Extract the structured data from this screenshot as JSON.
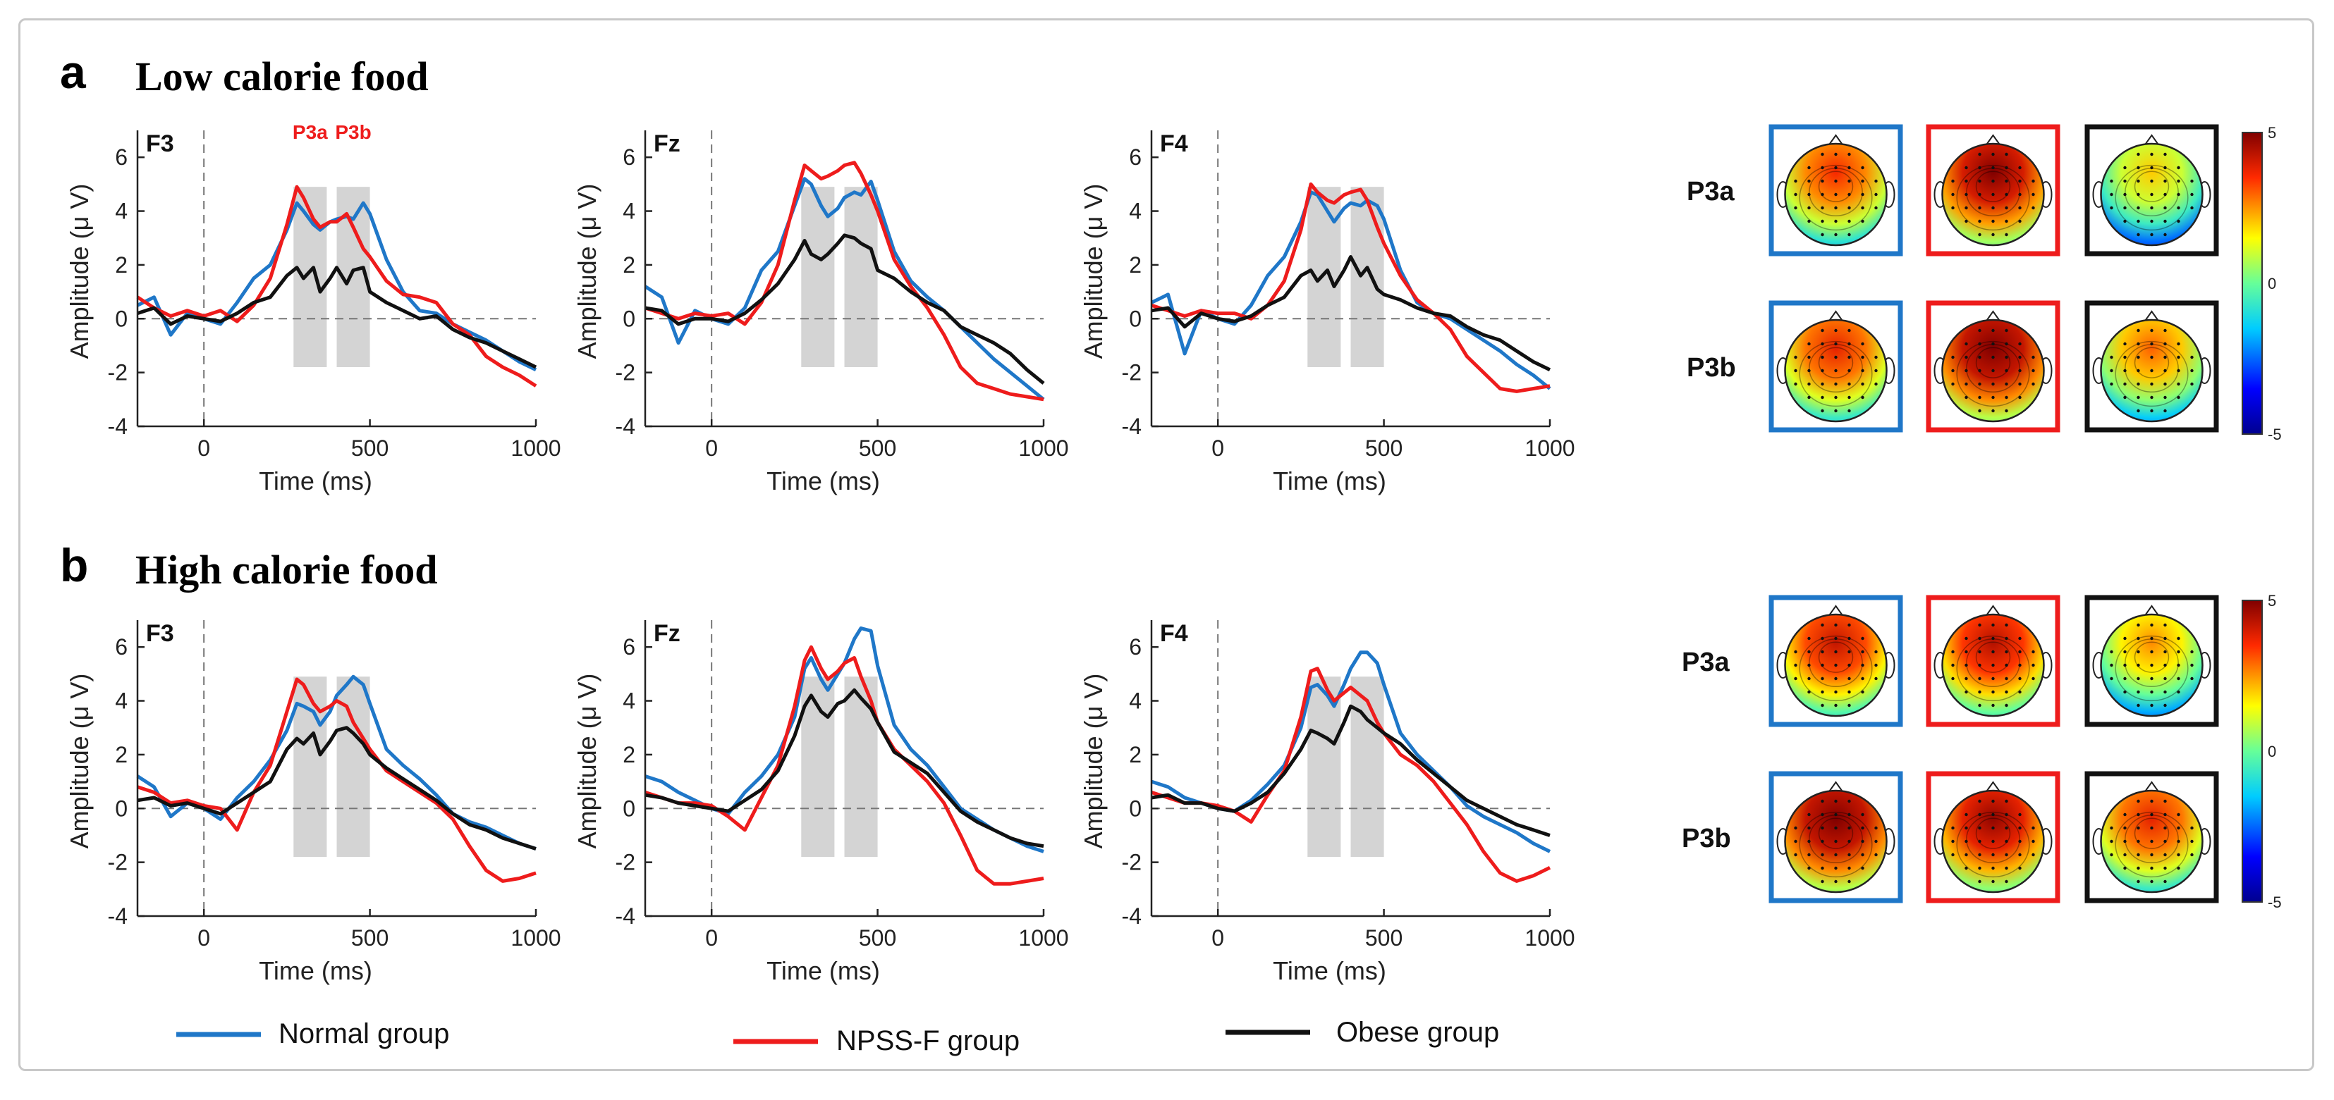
{
  "figure": {
    "panels": [
      {
        "letter": "a",
        "title": "Low calorie food"
      },
      {
        "letter": "b",
        "title": "High calorie food"
      }
    ],
    "x_label": "Time (ms)",
    "y_label": "Amplitude (μ V)",
    "x_ticks": [
      "0",
      "500",
      "1000"
    ],
    "y_ticks": [
      "-4",
      "-2",
      "0",
      "2",
      "4",
      "6"
    ],
    "window_labels": [
      "P3a",
      "P3b"
    ],
    "colorbar_ticks": [
      "5",
      "0",
      "-5"
    ]
  },
  "legend": [
    {
      "label": "Normal group",
      "color": "#1f77c8"
    },
    {
      "label": "NPSS-F group",
      "color": "#ee1c1c"
    },
    {
      "label": "Obese group",
      "color": "#111111"
    }
  ],
  "colors": {
    "normal": "#1f77c8",
    "npss": "#ee1c1c",
    "obese": "#111111",
    "window": "#d4d4d4"
  },
  "chart_data": [
    {
      "type": "line",
      "panel": "a",
      "channel": "F3",
      "xlim": [
        -200,
        1000
      ],
      "ylim": [
        -4,
        7
      ],
      "windows": [
        [
          270,
          370
        ],
        [
          400,
          500
        ]
      ],
      "x": [
        -200,
        -150,
        -100,
        -50,
        0,
        50,
        100,
        150,
        200,
        250,
        280,
        300,
        330,
        350,
        380,
        400,
        430,
        450,
        480,
        500,
        550,
        600,
        650,
        700,
        750,
        800,
        850,
        900,
        950,
        1000
      ],
      "series": [
        {
          "name": "Normal group",
          "values": [
            0.5,
            0.8,
            -0.6,
            0.2,
            0,
            -0.2,
            0.6,
            1.5,
            2.0,
            3.3,
            4.3,
            4.0,
            3.5,
            3.3,
            3.6,
            3.7,
            3.8,
            3.7,
            4.3,
            3.9,
            2.2,
            1.0,
            0.3,
            0.2,
            -0.2,
            -0.5,
            -0.8,
            -1.2,
            -1.6,
            -1.9
          ]
        },
        {
          "name": "NPSS-F group",
          "values": [
            0.8,
            0.4,
            0.1,
            0.3,
            0.1,
            0.3,
            -0.1,
            0.5,
            1.5,
            3.5,
            4.9,
            4.5,
            3.7,
            3.4,
            3.6,
            3.6,
            3.9,
            3.4,
            2.6,
            2.3,
            1.4,
            0.9,
            0.8,
            0.6,
            -0.2,
            -0.6,
            -1.4,
            -1.8,
            -2.1,
            -2.5
          ]
        },
        {
          "name": "Obese group",
          "values": [
            0.2,
            0.4,
            -0.2,
            0.1,
            0,
            -0.1,
            0.2,
            0.6,
            0.8,
            1.6,
            1.9,
            1.5,
            1.9,
            1.0,
            1.5,
            1.9,
            1.3,
            1.8,
            1.9,
            1.0,
            0.6,
            0.3,
            0.0,
            0.1,
            -0.4,
            -0.7,
            -0.9,
            -1.2,
            -1.5,
            -1.8
          ]
        }
      ]
    },
    {
      "type": "line",
      "panel": "a",
      "channel": "Fz",
      "xlim": [
        -200,
        1000
      ],
      "ylim": [
        -4,
        7
      ],
      "windows": [
        [
          270,
          370
        ],
        [
          400,
          500
        ]
      ],
      "x": [
        -200,
        -150,
        -100,
        -50,
        0,
        50,
        100,
        150,
        200,
        250,
        280,
        300,
        330,
        350,
        380,
        400,
        430,
        450,
        480,
        500,
        550,
        600,
        650,
        700,
        750,
        800,
        850,
        900,
        950,
        1000
      ],
      "series": [
        {
          "name": "Normal group",
          "values": [
            1.2,
            0.8,
            -0.9,
            0.3,
            0,
            -0.2,
            0.4,
            1.8,
            2.5,
            4.2,
            5.2,
            5.0,
            4.2,
            3.8,
            4.1,
            4.5,
            4.7,
            4.6,
            5.1,
            4.4,
            2.5,
            1.4,
            0.8,
            0.3,
            -0.3,
            -0.9,
            -1.5,
            -2.0,
            -2.5,
            -3.0
          ]
        },
        {
          "name": "NPSS-F group",
          "values": [
            0.4,
            0.2,
            0.0,
            0.2,
            0.1,
            0.2,
            -0.2,
            0.6,
            2.0,
            4.4,
            5.7,
            5.5,
            5.2,
            5.3,
            5.5,
            5.7,
            5.8,
            5.4,
            4.6,
            4.0,
            2.2,
            1.2,
            0.4,
            -0.6,
            -1.8,
            -2.4,
            -2.6,
            -2.8,
            -2.9,
            -3.0
          ]
        },
        {
          "name": "Obese group",
          "values": [
            0.4,
            0.3,
            -0.2,
            0.0,
            0,
            -0.1,
            0.2,
            0.7,
            1.3,
            2.2,
            2.9,
            2.4,
            2.2,
            2.4,
            2.8,
            3.1,
            3.0,
            2.8,
            2.6,
            1.8,
            1.5,
            1.0,
            0.6,
            0.3,
            -0.3,
            -0.6,
            -0.9,
            -1.3,
            -1.9,
            -2.4
          ]
        }
      ]
    },
    {
      "type": "line",
      "panel": "a",
      "channel": "F4",
      "xlim": [
        -200,
        1000
      ],
      "ylim": [
        -4,
        7
      ],
      "windows": [
        [
          270,
          370
        ],
        [
          400,
          500
        ]
      ],
      "x": [
        -200,
        -150,
        -100,
        -50,
        0,
        50,
        100,
        150,
        200,
        250,
        280,
        300,
        330,
        350,
        380,
        400,
        430,
        450,
        480,
        500,
        550,
        600,
        650,
        700,
        750,
        800,
        850,
        900,
        950,
        1000
      ],
      "series": [
        {
          "name": "Normal group",
          "values": [
            0.6,
            0.9,
            -1.3,
            0.3,
            0,
            -0.2,
            0.5,
            1.6,
            2.3,
            3.6,
            4.7,
            4.6,
            4.0,
            3.6,
            4.1,
            4.3,
            4.2,
            4.4,
            4.2,
            3.7,
            1.8,
            0.6,
            0.2,
            0.0,
            -0.4,
            -0.8,
            -1.2,
            -1.7,
            -2.1,
            -2.6
          ]
        },
        {
          "name": "NPSS-F group",
          "values": [
            0.5,
            0.3,
            0.1,
            0.3,
            0.2,
            0.2,
            0.0,
            0.5,
            1.4,
            3.3,
            5.0,
            4.7,
            4.4,
            4.3,
            4.6,
            4.7,
            4.8,
            4.4,
            3.4,
            2.8,
            1.6,
            0.7,
            0.2,
            -0.4,
            -1.4,
            -2.0,
            -2.6,
            -2.7,
            -2.6,
            -2.5
          ]
        },
        {
          "name": "Obese group",
          "values": [
            0.3,
            0.4,
            -0.3,
            0.2,
            0,
            -0.1,
            0.1,
            0.5,
            0.8,
            1.6,
            1.8,
            1.4,
            1.8,
            1.2,
            1.8,
            2.3,
            1.6,
            1.9,
            1.1,
            0.9,
            0.7,
            0.4,
            0.2,
            0.1,
            -0.3,
            -0.6,
            -0.8,
            -1.2,
            -1.6,
            -1.9
          ]
        }
      ]
    },
    {
      "type": "line",
      "panel": "b",
      "channel": "F3",
      "xlim": [
        -200,
        1000
      ],
      "ylim": [
        -4,
        7
      ],
      "windows": [
        [
          270,
          370
        ],
        [
          400,
          500
        ]
      ],
      "x": [
        -200,
        -150,
        -100,
        -50,
        0,
        50,
        100,
        150,
        200,
        250,
        280,
        300,
        330,
        350,
        380,
        400,
        430,
        450,
        480,
        500,
        550,
        600,
        650,
        700,
        750,
        800,
        850,
        900,
        950,
        1000
      ],
      "series": [
        {
          "name": "Normal group",
          "values": [
            1.2,
            0.8,
            -0.3,
            0.2,
            0,
            -0.4,
            0.4,
            1.0,
            1.8,
            2.9,
            3.9,
            3.8,
            3.6,
            3.1,
            3.6,
            4.2,
            4.6,
            4.9,
            4.6,
            3.9,
            2.2,
            1.6,
            1.1,
            0.5,
            -0.2,
            -0.5,
            -0.7,
            -1.0,
            -1.3,
            -1.5
          ]
        },
        {
          "name": "NPSS-F group",
          "values": [
            0.8,
            0.6,
            0.2,
            0.3,
            0.1,
            0.0,
            -0.8,
            0.6,
            1.6,
            3.6,
            4.8,
            4.6,
            3.9,
            3.6,
            3.8,
            4.0,
            3.8,
            3.2,
            2.6,
            2.2,
            1.4,
            1.0,
            0.6,
            0.2,
            -0.4,
            -1.4,
            -2.3,
            -2.7,
            -2.6,
            -2.4
          ]
        },
        {
          "name": "Obese group",
          "values": [
            0.3,
            0.4,
            0.1,
            0.2,
            0,
            -0.2,
            0.2,
            0.6,
            1.0,
            2.2,
            2.6,
            2.4,
            2.8,
            2.0,
            2.5,
            2.9,
            3.0,
            2.8,
            2.4,
            2.0,
            1.5,
            1.1,
            0.7,
            0.3,
            -0.2,
            -0.6,
            -0.8,
            -1.1,
            -1.3,
            -1.5
          ]
        }
      ]
    },
    {
      "type": "line",
      "panel": "b",
      "channel": "Fz",
      "xlim": [
        -200,
        1000
      ],
      "ylim": [
        -4,
        7
      ],
      "windows": [
        [
          270,
          370
        ],
        [
          400,
          500
        ]
      ],
      "x": [
        -200,
        -150,
        -100,
        -50,
        0,
        50,
        100,
        150,
        200,
        250,
        280,
        300,
        330,
        350,
        380,
        400,
        430,
        450,
        480,
        500,
        550,
        600,
        650,
        700,
        750,
        800,
        850,
        900,
        950,
        1000
      ],
      "series": [
        {
          "name": "Normal group",
          "values": [
            1.2,
            1.0,
            0.6,
            0.3,
            0,
            -0.2,
            0.6,
            1.2,
            2.0,
            3.4,
            5.2,
            5.6,
            4.8,
            4.4,
            5.0,
            5.4,
            6.3,
            6.7,
            6.6,
            5.3,
            3.1,
            2.2,
            1.6,
            0.8,
            0.0,
            -0.4,
            -0.8,
            -1.1,
            -1.4,
            -1.6
          ]
        },
        {
          "name": "NPSS-F group",
          "values": [
            0.6,
            0.4,
            0.2,
            0.2,
            0.1,
            -0.3,
            -0.8,
            0.4,
            1.6,
            3.8,
            5.5,
            6.0,
            5.2,
            4.8,
            5.1,
            5.4,
            5.6,
            4.9,
            4.0,
            3.2,
            2.2,
            1.6,
            1.0,
            0.2,
            -1.0,
            -2.3,
            -2.8,
            -2.8,
            -2.7,
            -2.6
          ]
        },
        {
          "name": "Obese group",
          "values": [
            0.5,
            0.4,
            0.2,
            0.1,
            0,
            -0.1,
            0.3,
            0.7,
            1.4,
            2.7,
            3.8,
            4.2,
            3.6,
            3.4,
            3.9,
            4.0,
            4.4,
            4.1,
            3.7,
            3.2,
            2.1,
            1.7,
            1.3,
            0.6,
            -0.1,
            -0.5,
            -0.8,
            -1.1,
            -1.3,
            -1.4
          ]
        }
      ]
    },
    {
      "type": "line",
      "panel": "b",
      "channel": "F4",
      "xlim": [
        -200,
        1000
      ],
      "ylim": [
        -4,
        7
      ],
      "windows": [
        [
          270,
          370
        ],
        [
          400,
          500
        ]
      ],
      "x": [
        -200,
        -150,
        -100,
        -50,
        0,
        50,
        100,
        150,
        200,
        250,
        280,
        300,
        330,
        350,
        380,
        400,
        430,
        450,
        480,
        500,
        550,
        600,
        650,
        700,
        750,
        800,
        850,
        900,
        950,
        1000
      ],
      "series": [
        {
          "name": "Normal group",
          "values": [
            1.0,
            0.8,
            0.4,
            0.2,
            0,
            -0.1,
            0.3,
            0.9,
            1.6,
            3.0,
            4.5,
            4.6,
            4.2,
            3.8,
            4.6,
            5.2,
            5.8,
            5.8,
            5.4,
            4.6,
            2.8,
            2.0,
            1.4,
            0.8,
            0.1,
            -0.3,
            -0.6,
            -0.9,
            -1.3,
            -1.6
          ]
        },
        {
          "name": "NPSS-F group",
          "values": [
            0.6,
            0.4,
            0.2,
            0.2,
            0.1,
            -0.1,
            -0.5,
            0.5,
            1.4,
            3.4,
            5.1,
            5.2,
            4.4,
            4.0,
            4.3,
            4.5,
            4.2,
            4.0,
            3.2,
            2.8,
            2.0,
            1.6,
            1.0,
            0.2,
            -0.6,
            -1.6,
            -2.4,
            -2.7,
            -2.5,
            -2.2
          ]
        },
        {
          "name": "Obese group",
          "values": [
            0.4,
            0.5,
            0.2,
            0.2,
            0,
            -0.1,
            0.2,
            0.6,
            1.3,
            2.2,
            2.9,
            2.8,
            2.6,
            2.4,
            3.2,
            3.8,
            3.6,
            3.3,
            3.0,
            2.8,
            2.4,
            1.8,
            1.3,
            0.8,
            0.3,
            0.0,
            -0.3,
            -0.6,
            -0.8,
            -1.0
          ]
        }
      ]
    }
  ],
  "topomaps": [
    {
      "panel": "a",
      "rows": [
        {
          "label": "P3a",
          "maps": [
            {
              "group": "Normal group",
              "frame": "#1f77c8",
              "level": 3.2
            },
            {
              "group": "NPSS-F group",
              "frame": "#ee1c1c",
              "level": 4.6
            },
            {
              "group": "Obese group",
              "frame": "#111111",
              "level": 1.6
            }
          ]
        },
        {
          "label": "P3b",
          "maps": [
            {
              "group": "Normal group",
              "frame": "#1f77c8",
              "level": 3.4
            },
            {
              "group": "NPSS-F group",
              "frame": "#ee1c1c",
              "level": 4.8
            },
            {
              "group": "Obese group",
              "frame": "#111111",
              "level": 2.6
            }
          ]
        }
      ]
    },
    {
      "panel": "b",
      "rows": [
        {
          "label": "P3a",
          "maps": [
            {
              "group": "Normal group",
              "frame": "#1f77c8",
              "level": 3.8
            },
            {
              "group": "NPSS-F group",
              "frame": "#ee1c1c",
              "level": 4.0
            },
            {
              "group": "Obese group",
              "frame": "#111111",
              "level": 2.2
            }
          ]
        },
        {
          "label": "P3b",
          "maps": [
            {
              "group": "Normal group",
              "frame": "#1f77c8",
              "level": 4.8
            },
            {
              "group": "NPSS-F group",
              "frame": "#ee1c1c",
              "level": 4.4
            },
            {
              "group": "Obese group",
              "frame": "#111111",
              "level": 3.4
            }
          ]
        }
      ]
    }
  ]
}
